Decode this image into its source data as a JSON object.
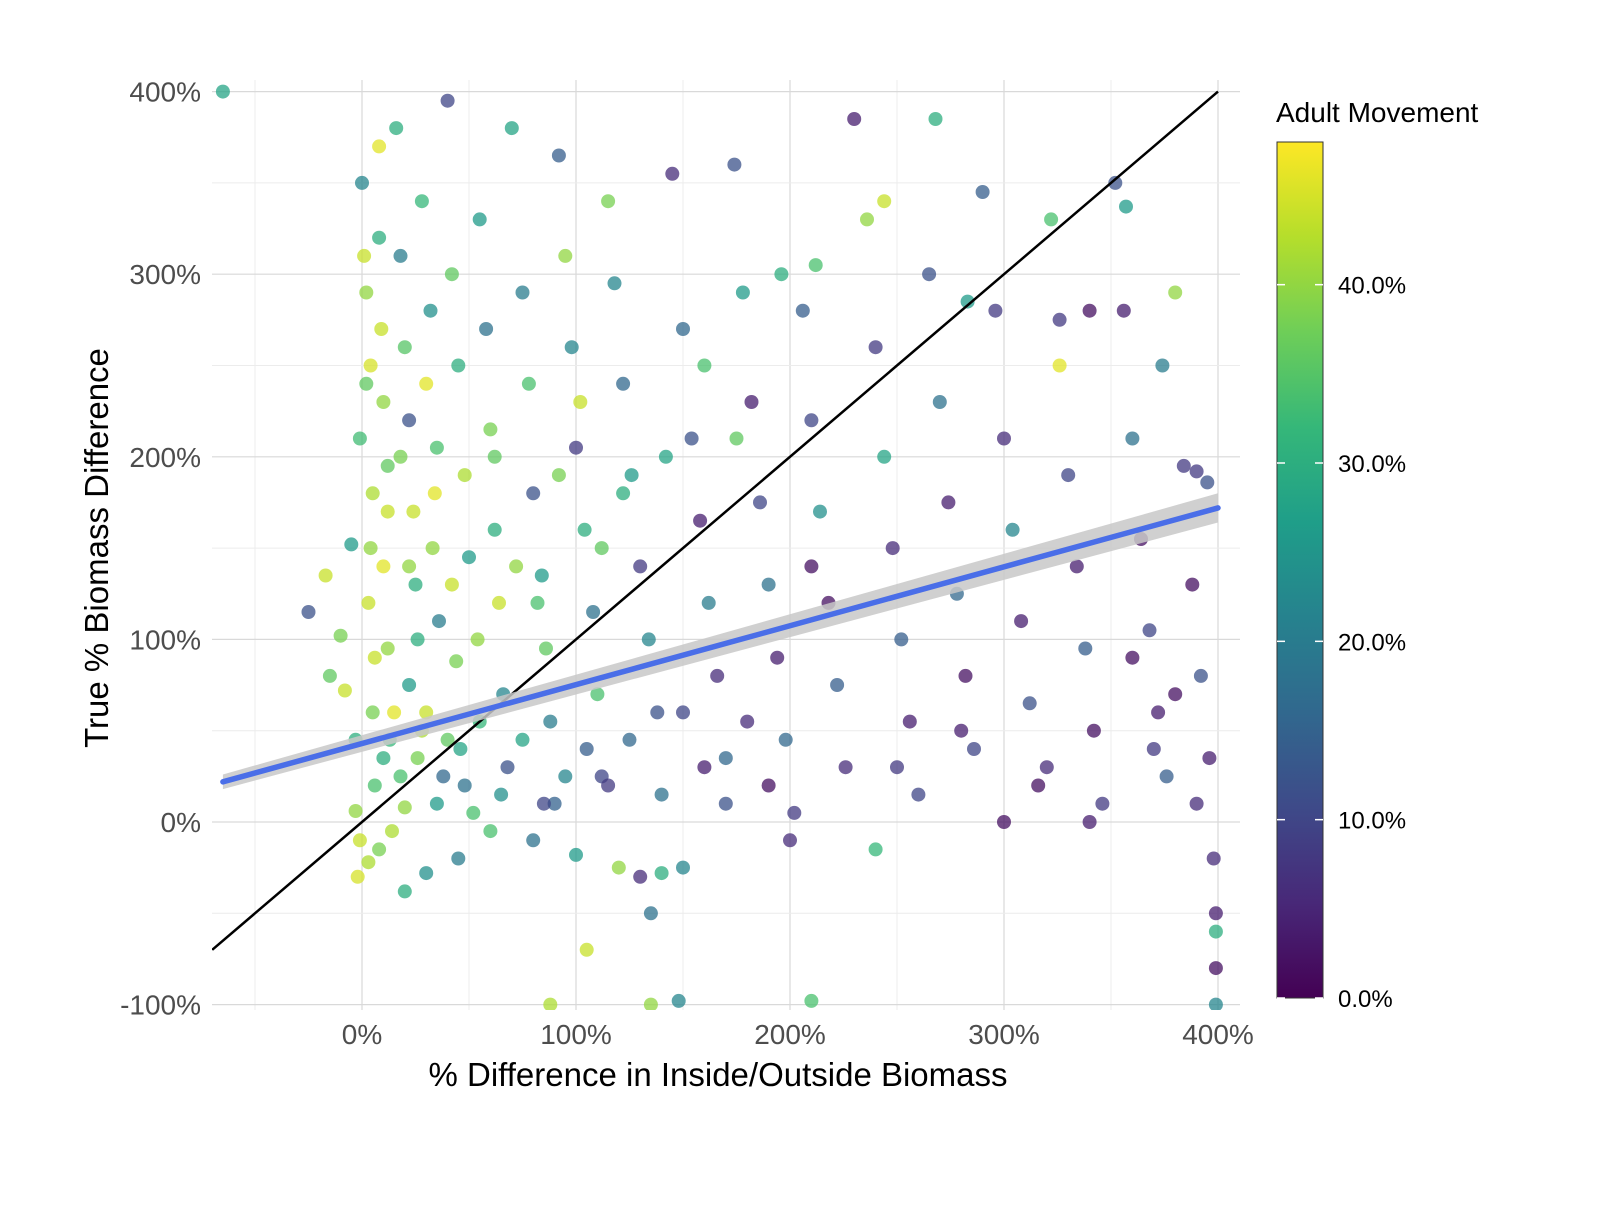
{
  "chart_data": {
    "type": "scatter",
    "title": "",
    "xlabel": "% Difference in Inside/Outside Biomass",
    "ylabel": "True % Biomass Difference",
    "xlim": [
      -70,
      400
    ],
    "ylim": [
      -100,
      400
    ],
    "x_ticks": [
      0,
      100,
      200,
      300,
      400
    ],
    "x_tick_labels": [
      "0%",
      "100%",
      "200%",
      "300%",
      "400%"
    ],
    "y_ticks": [
      -100,
      0,
      100,
      200,
      300,
      400
    ],
    "y_tick_labels": [
      "-100%",
      "0%",
      "100%",
      "200%",
      "300%",
      "400%"
    ],
    "grid": true,
    "reference_line": {
      "name": "1:1 line",
      "slope": 1,
      "intercept": 0,
      "color": "#000000"
    },
    "trend_line": {
      "name": "linear fit",
      "x": [
        -65,
        400
      ],
      "y": [
        22,
        172
      ],
      "color": "#4a6ee8",
      "band_color": "#c8c8c8"
    },
    "legend": {
      "title": "Adult Movement",
      "position": "right",
      "range": [
        0,
        48
      ],
      "ticks": [
        0,
        10,
        20,
        30,
        40
      ],
      "tick_labels": [
        "0.0%",
        "10.0%",
        "20.0%",
        "30.0%",
        "40.0%"
      ],
      "colormap": [
        "#440154",
        "#482878",
        "#3e4a89",
        "#31688e",
        "#26828e",
        "#1f9e89",
        "#35b779",
        "#6ece58",
        "#b5de2b",
        "#fde725"
      ]
    },
    "points": [
      [
        -65,
        400,
        28
      ],
      [
        -25,
        115,
        12
      ],
      [
        -17,
        135,
        44
      ],
      [
        -15,
        80,
        36
      ],
      [
        -10,
        102,
        38
      ],
      [
        -5,
        152,
        26
      ],
      [
        -3,
        45,
        30
      ],
      [
        -8,
        72,
        44
      ],
      [
        -2,
        -30,
        45
      ],
      [
        -3,
        6,
        40
      ],
      [
        -1,
        210,
        33
      ],
      [
        0,
        350,
        22
      ],
      [
        2,
        290,
        40
      ],
      [
        4,
        250,
        45
      ],
      [
        5,
        180,
        42
      ],
      [
        3,
        120,
        44
      ],
      [
        5,
        60,
        38
      ],
      [
        6,
        20,
        34
      ],
      [
        8,
        370,
        46
      ],
      [
        8,
        320,
        30
      ],
      [
        9,
        270,
        44
      ],
      [
        10,
        230,
        40
      ],
      [
        12,
        195,
        36
      ],
      [
        10,
        140,
        46
      ],
      [
        12,
        95,
        40
      ],
      [
        13,
        45,
        32
      ],
      [
        14,
        -5,
        42
      ],
      [
        16,
        380,
        30
      ],
      [
        18,
        310,
        20
      ],
      [
        20,
        260,
        35
      ],
      [
        22,
        220,
        12
      ],
      [
        24,
        170,
        44
      ],
      [
        25,
        130,
        30
      ],
      [
        22,
        75,
        26
      ],
      [
        26,
        35,
        38
      ],
      [
        20,
        8,
        40
      ],
      [
        28,
        340,
        32
      ],
      [
        32,
        280,
        24
      ],
      [
        30,
        240,
        46
      ],
      [
        35,
        205,
        34
      ],
      [
        33,
        150,
        40
      ],
      [
        36,
        110,
        20
      ],
      [
        30,
        60,
        44
      ],
      [
        38,
        25,
        16
      ],
      [
        40,
        395,
        10
      ],
      [
        42,
        300,
        36
      ],
      [
        45,
        250,
        30
      ],
      [
        48,
        190,
        42
      ],
      [
        50,
        145,
        26
      ],
      [
        44,
        88,
        38
      ],
      [
        46,
        40,
        28
      ],
      [
        52,
        5,
        34
      ],
      [
        55,
        330,
        26
      ],
      [
        58,
        270,
        18
      ],
      [
        60,
        215,
        38
      ],
      [
        62,
        160,
        30
      ],
      [
        64,
        120,
        44
      ],
      [
        66,
        70,
        22
      ],
      [
        68,
        30,
        12
      ],
      [
        70,
        380,
        28
      ],
      [
        75,
        290,
        20
      ],
      [
        78,
        240,
        34
      ],
      [
        80,
        180,
        12
      ],
      [
        84,
        135,
        26
      ],
      [
        86,
        95,
        36
      ],
      [
        88,
        55,
        20
      ],
      [
        90,
        10,
        15
      ],
      [
        92,
        365,
        14
      ],
      [
        95,
        310,
        40
      ],
      [
        98,
        260,
        22
      ],
      [
        100,
        205,
        8
      ],
      [
        104,
        160,
        30
      ],
      [
        108,
        115,
        18
      ],
      [
        110,
        70,
        34
      ],
      [
        112,
        25,
        10
      ],
      [
        115,
        340,
        38
      ],
      [
        118,
        295,
        22
      ],
      [
        122,
        240,
        16
      ],
      [
        126,
        190,
        26
      ],
      [
        130,
        140,
        8
      ],
      [
        134,
        100,
        22
      ],
      [
        138,
        60,
        12
      ],
      [
        140,
        15,
        18
      ],
      [
        145,
        355,
        6
      ],
      [
        150,
        270,
        16
      ],
      [
        154,
        210,
        12
      ],
      [
        158,
        165,
        4
      ],
      [
        162,
        120,
        20
      ],
      [
        166,
        80,
        6
      ],
      [
        170,
        35,
        16
      ],
      [
        174,
        360,
        12
      ],
      [
        178,
        290,
        26
      ],
      [
        182,
        230,
        4
      ],
      [
        186,
        175,
        10
      ],
      [
        190,
        130,
        18
      ],
      [
        194,
        90,
        4
      ],
      [
        198,
        45,
        16
      ],
      [
        202,
        5,
        8
      ],
      [
        206,
        280,
        14
      ],
      [
        210,
        220,
        10
      ],
      [
        214,
        170,
        24
      ],
      [
        218,
        120,
        2
      ],
      [
        222,
        75,
        14
      ],
      [
        226,
        30,
        6
      ],
      [
        230,
        385,
        4
      ],
      [
        236,
        330,
        40
      ],
      [
        240,
        260,
        8
      ],
      [
        244,
        200,
        28
      ],
      [
        248,
        150,
        6
      ],
      [
        252,
        100,
        14
      ],
      [
        256,
        55,
        4
      ],
      [
        260,
        15,
        10
      ],
      [
        265,
        300,
        12
      ],
      [
        270,
        230,
        18
      ],
      [
        274,
        175,
        4
      ],
      [
        278,
        125,
        16
      ],
      [
        282,
        80,
        2
      ],
      [
        286,
        40,
        10
      ],
      [
        290,
        345,
        14
      ],
      [
        296,
        280,
        8
      ],
      [
        300,
        210,
        6
      ],
      [
        304,
        160,
        22
      ],
      [
        308,
        110,
        4
      ],
      [
        312,
        65,
        12
      ],
      [
        316,
        20,
        2
      ],
      [
        322,
        330,
        34
      ],
      [
        326,
        250,
        46
      ],
      [
        330,
        190,
        10
      ],
      [
        334,
        140,
        4
      ],
      [
        338,
        95,
        14
      ],
      [
        342,
        50,
        2
      ],
      [
        346,
        10,
        8
      ],
      [
        352,
        350,
        12
      ],
      [
        356,
        280,
        4
      ],
      [
        360,
        210,
        18
      ],
      [
        364,
        155,
        2
      ],
      [
        368,
        105,
        10
      ],
      [
        372,
        60,
        4
      ],
      [
        376,
        25,
        14
      ],
      [
        380,
        290,
        40
      ],
      [
        384,
        195,
        8
      ],
      [
        388,
        130,
        2
      ],
      [
        392,
        80,
        12
      ],
      [
        396,
        35,
        4
      ],
      [
        398,
        -20,
        6
      ],
      [
        399,
        -50,
        4
      ],
      [
        399,
        -80,
        2
      ],
      [
        399,
        -60,
        30
      ],
      [
        399,
        -100,
        22
      ],
      [
        -1,
        -10,
        44
      ],
      [
        3,
        -22,
        42
      ],
      [
        8,
        -15,
        38
      ],
      [
        20,
        -38,
        30
      ],
      [
        30,
        -28,
        24
      ],
      [
        45,
        -20,
        20
      ],
      [
        60,
        -5,
        34
      ],
      [
        80,
        -10,
        18
      ],
      [
        100,
        -18,
        26
      ],
      [
        120,
        -25,
        40
      ],
      [
        130,
        -30,
        6
      ],
      [
        135,
        -50,
        18
      ],
      [
        140,
        -28,
        30
      ],
      [
        150,
        -25,
        22
      ],
      [
        105,
        -70,
        44
      ],
      [
        88,
        -100,
        42
      ],
      [
        135,
        -100,
        40
      ],
      [
        148,
        -98,
        22
      ],
      [
        210,
        -98,
        34
      ],
      [
        200,
        -10,
        6
      ],
      [
        240,
        -15,
        32
      ],
      [
        210,
        140,
        2
      ],
      [
        250,
        30,
        8
      ],
      [
        280,
        50,
        4
      ],
      [
        300,
        0,
        2
      ],
      [
        320,
        30,
        6
      ],
      [
        340,
        0,
        4
      ],
      [
        360,
        90,
        2
      ],
      [
        370,
        40,
        8
      ],
      [
        380,
        70,
        2
      ],
      [
        390,
        10,
        6
      ],
      [
        150,
        60,
        10
      ],
      [
        160,
        30,
        4
      ],
      [
        170,
        10,
        12
      ],
      [
        180,
        55,
        6
      ],
      [
        190,
        20,
        2
      ],
      [
        125,
        45,
        16
      ],
      [
        115,
        20,
        8
      ],
      [
        105,
        40,
        14
      ],
      [
        95,
        25,
        22
      ],
      [
        85,
        10,
        10
      ],
      [
        75,
        45,
        28
      ],
      [
        65,
        15,
        24
      ],
      [
        55,
        55,
        32
      ],
      [
        48,
        20,
        18
      ],
      [
        40,
        45,
        36
      ],
      [
        35,
        10,
        26
      ],
      [
        28,
        50,
        42
      ],
      [
        18,
        25,
        34
      ],
      [
        15,
        60,
        46
      ],
      [
        10,
        35,
        30
      ],
      [
        6,
        90,
        44
      ],
      [
        4,
        150,
        40
      ],
      [
        2,
        240,
        36
      ],
      [
        1,
        310,
        44
      ],
      [
        12,
        170,
        44
      ],
      [
        18,
        200,
        38
      ],
      [
        22,
        140,
        40
      ],
      [
        26,
        100,
        30
      ],
      [
        34,
        180,
        46
      ],
      [
        42,
        130,
        44
      ],
      [
        54,
        100,
        40
      ],
      [
        62,
        200,
        36
      ],
      [
        72,
        140,
        40
      ],
      [
        82,
        120,
        34
      ],
      [
        92,
        190,
        38
      ],
      [
        102,
        230,
        44
      ],
      [
        112,
        150,
        36
      ],
      [
        122,
        180,
        30
      ],
      [
        142,
        200,
        28
      ],
      [
        160,
        250,
        34
      ],
      [
        175,
        210,
        36
      ],
      [
        196,
        300,
        30
      ],
      [
        212,
        305,
        34
      ],
      [
        244,
        340,
        44
      ],
      [
        268,
        385,
        30
      ],
      [
        283,
        285,
        26
      ],
      [
        326,
        275,
        8
      ],
      [
        340,
        280,
        2
      ],
      [
        357,
        337,
        26
      ],
      [
        374,
        250,
        20
      ],
      [
        390,
        192,
        8
      ],
      [
        395,
        186,
        12
      ]
    ]
  }
}
